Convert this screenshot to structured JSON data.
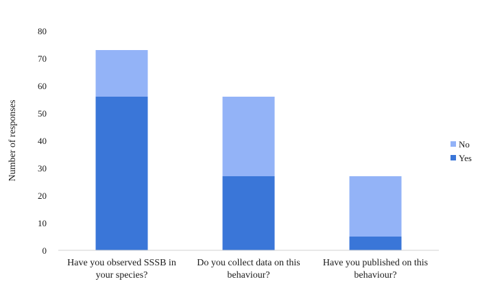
{
  "chart_data": {
    "type": "bar",
    "stacked": true,
    "categories": [
      [
        "Have you observed SSSB in",
        "your species?"
      ],
      [
        "Do you collect data on this",
        "behaviour?"
      ],
      [
        "Have you published on this",
        "behaviour?"
      ]
    ],
    "series": [
      {
        "name": "Yes",
        "values": [
          56,
          27,
          5
        ],
        "color": "#3a76d8"
      },
      {
        "name": "No",
        "values": [
          17,
          29,
          22
        ],
        "color": "#93b3f7"
      }
    ],
    "title": "",
    "xlabel": "",
    "ylabel": "Number of responses",
    "ylim": [
      0,
      80
    ],
    "yticks": [
      0,
      10,
      20,
      30,
      40,
      50,
      60,
      70,
      80
    ],
    "grid": false,
    "legend_position": "right",
    "legend_order": [
      "No",
      "Yes"
    ]
  }
}
